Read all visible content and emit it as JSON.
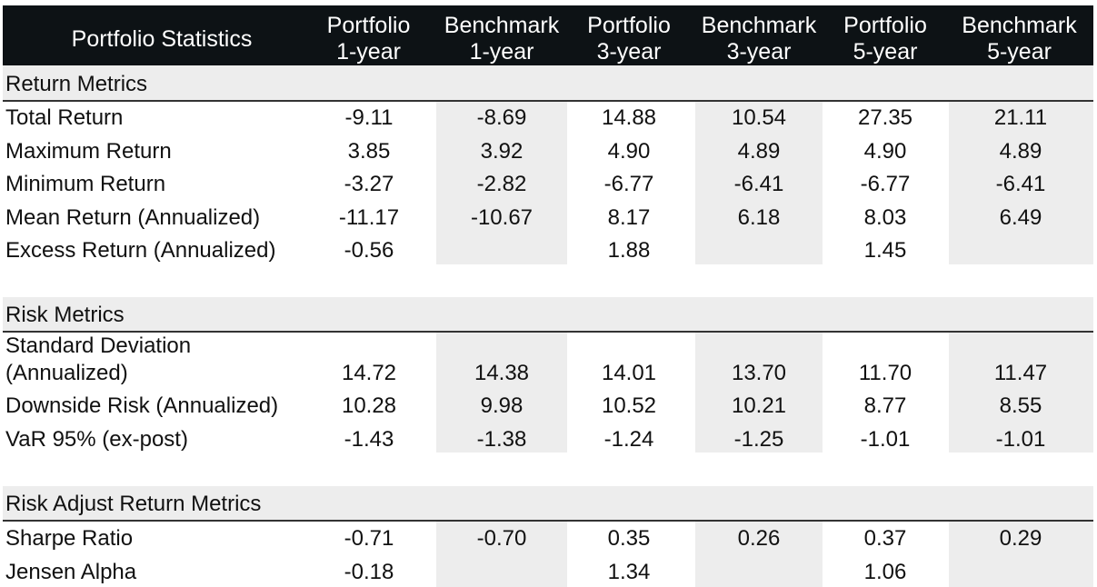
{
  "header": {
    "title": "Portfolio Statistics",
    "columns": [
      {
        "line1": "Portfolio",
        "line2": "1-year"
      },
      {
        "line1": "Benchmark",
        "line2": "1-year"
      },
      {
        "line1": "Portfolio",
        "line2": "3-year"
      },
      {
        "line1": "Benchmark",
        "line2": "3-year"
      },
      {
        "line1": "Portfolio",
        "line2": "5-year"
      },
      {
        "line1": "Benchmark",
        "line2": "5-year"
      }
    ]
  },
  "sections": [
    {
      "title": "Return Metrics",
      "rows": [
        {
          "label": "Total Return",
          "values": [
            "-9.11",
            "-8.69",
            "14.88",
            "10.54",
            "27.35",
            "21.11"
          ]
        },
        {
          "label": "Maximum Return",
          "values": [
            "3.85",
            "3.92",
            "4.90",
            "4.89",
            "4.90",
            "4.89"
          ]
        },
        {
          "label": "Minimum Return",
          "values": [
            "-3.27",
            "-2.82",
            "-6.77",
            "-6.41",
            "-6.77",
            "-6.41"
          ]
        },
        {
          "label": "Mean Return (Annualized)",
          "values": [
            "-11.17",
            "-10.67",
            "8.17",
            "6.18",
            "8.03",
            "6.49"
          ]
        },
        {
          "label": "Excess Return (Annualized)",
          "values": [
            "-0.56",
            "",
            "1.88",
            "",
            "1.45",
            ""
          ]
        }
      ]
    },
    {
      "title": "Risk Metrics",
      "rows": [
        {
          "label_line1": "Standard Deviation",
          "label": "(Annualized)",
          "values": [
            "14.72",
            "14.38",
            "14.01",
            "13.70",
            "11.70",
            "11.47"
          ]
        },
        {
          "label": "Downside Risk (Annualized)",
          "values": [
            "10.28",
            "9.98",
            "10.52",
            "10.21",
            "8.77",
            "8.55"
          ]
        },
        {
          "label": "VaR 95% (ex-post)",
          "values": [
            "-1.43",
            "-1.38",
            "-1.24",
            "-1.25",
            "-1.01",
            "-1.01"
          ]
        }
      ]
    },
    {
      "title": "Risk Adjust Return Metrics",
      "rows": [
        {
          "label": "Sharpe Ratio",
          "values": [
            "-0.71",
            "-0.70",
            "0.35",
            "0.26",
            "0.37",
            "0.29"
          ]
        },
        {
          "label": "Jensen Alpha",
          "values": [
            "-0.18",
            "",
            "1.34",
            "",
            "1.06",
            ""
          ]
        }
      ]
    }
  ]
}
